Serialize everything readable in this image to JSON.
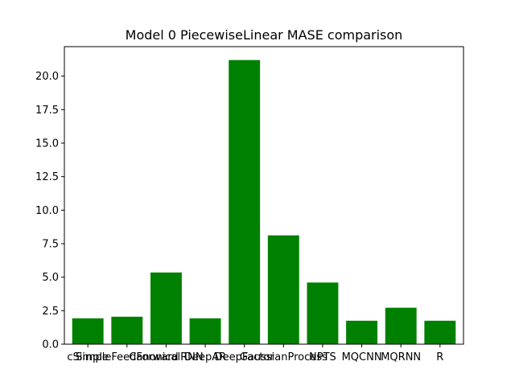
{
  "chart_data": {
    "type": "bar",
    "title": "Model 0 PiecewiseLinear MASE comparison",
    "xlabel": "",
    "ylabel": "",
    "categories": [
      "cSimple",
      "SimpleFeedForward",
      "CanonicalRNN",
      "DeepAR",
      "DeepFactor",
      "GaussianProcess",
      "NPTS",
      "MQCNN",
      "MQRNN",
      "R"
    ],
    "values": [
      1.93,
      2.05,
      5.35,
      1.93,
      21.2,
      8.12,
      4.6,
      1.75,
      2.72,
      1.75
    ],
    "ylim": [
      0,
      22.2
    ],
    "yticks": [
      0.0,
      2.5,
      5.0,
      7.5,
      10.0,
      12.5,
      15.0,
      17.5,
      20.0
    ],
    "ytick_labels": [
      "0.0",
      "2.5",
      "5.0",
      "7.5",
      "10.0",
      "12.5",
      "15.0",
      "17.5",
      "20.0"
    ],
    "bar_color": "#008000",
    "grid": false,
    "legend": "none"
  }
}
